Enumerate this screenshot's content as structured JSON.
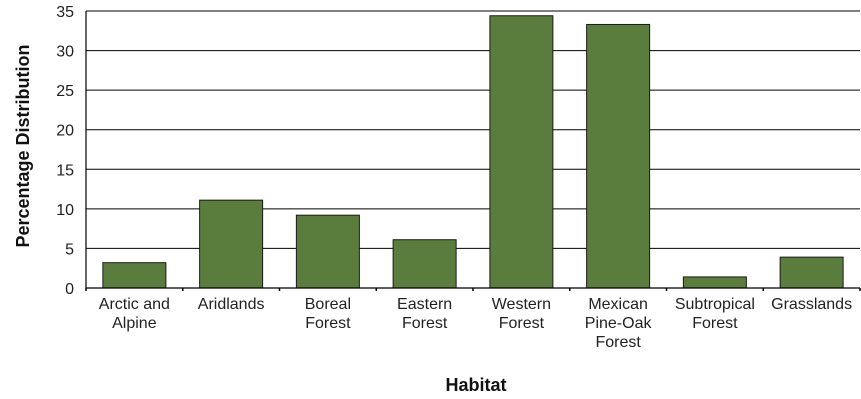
{
  "chart_data": {
    "type": "bar",
    "title": "",
    "xlabel": "Habitat",
    "ylabel": "Percentage Distribution",
    "categories": [
      [
        "Arctic and",
        "Alpine"
      ],
      [
        "Aridlands"
      ],
      [
        "Boreal",
        "Forest"
      ],
      [
        "Eastern",
        "Forest"
      ],
      [
        "Western",
        "Forest"
      ],
      [
        "Mexican",
        "Pine-Oak",
        "Forest"
      ],
      [
        "Subtropical",
        "Forest"
      ],
      [
        "Grasslands"
      ]
    ],
    "values": [
      3.2,
      11.1,
      9.2,
      6.1,
      34.4,
      33.3,
      1.4,
      3.9
    ],
    "ylim": [
      0,
      35
    ],
    "yticks": [
      0,
      5,
      10,
      15,
      20,
      25,
      30,
      35
    ],
    "grid": true,
    "colors": {
      "bar": "#5a7d3e",
      "bar_edge": "#1a1a1a",
      "grid": "#000000",
      "axis": "#000000"
    }
  }
}
